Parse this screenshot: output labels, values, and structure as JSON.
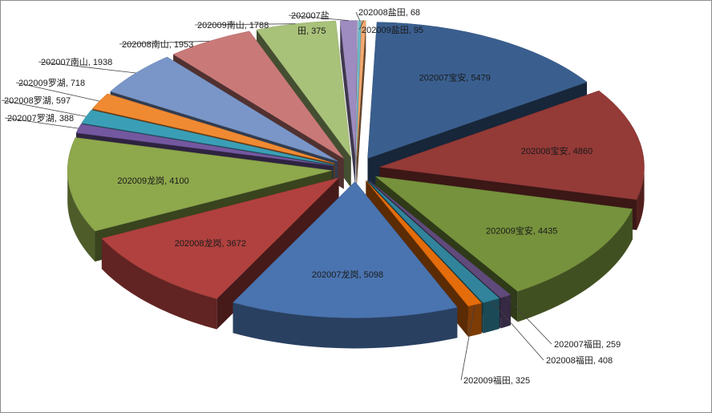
{
  "chart_data": {
    "type": "pie",
    "variant": "3d-exploded",
    "title": "",
    "legend": "none",
    "slices": [
      {
        "label": "202007宝安, 5479",
        "value": 5479,
        "color": "#3a5f8f"
      },
      {
        "label": "202008宝安, 4860",
        "value": 4860,
        "color": "#943a37"
      },
      {
        "label": "202009宝安, 4435",
        "value": 4435,
        "color": "#76923c"
      },
      {
        "label": "202007福田, 259",
        "value": 259,
        "color": "#604a7b"
      },
      {
        "label": "202008福田, 408",
        "value": 408,
        "color": "#31849b"
      },
      {
        "label": "202009福田, 325",
        "value": 325,
        "color": "#e46c0a"
      },
      {
        "label": "202007龙岗, 5098",
        "value": 5098,
        "color": "#4a74b0"
      },
      {
        "label": "202008龙岗, 3672",
        "value": 3672,
        "color": "#b0413e"
      },
      {
        "label": "202009龙岗, 4100",
        "value": 4100,
        "color": "#8ea84c"
      },
      {
        "label": "202007罗湖, 388",
        "value": 388,
        "color": "#7358a0"
      },
      {
        "label": "202008罗湖, 597",
        "value": 597,
        "color": "#3a9fb6"
      },
      {
        "label": "202009罗湖, 718",
        "value": 718,
        "color": "#f08a32"
      },
      {
        "label": "202007南山, 1938",
        "value": 1938,
        "color": "#7a96c8"
      },
      {
        "label": "202008南山, 1953",
        "value": 1953,
        "color": "#c97a78"
      },
      {
        "label": "202009南山, 1788",
        "value": 1788,
        "color": "#a9c27a"
      },
      {
        "label": "202007盐田, 375",
        "value": 375,
        "color": "#9e8cc0"
      },
      {
        "label": "202008盐田, 68",
        "value": 68,
        "color": "#6fb9ca"
      },
      {
        "label": "202009盐田, 95",
        "value": 95,
        "color": "#f4a96e"
      }
    ]
  }
}
